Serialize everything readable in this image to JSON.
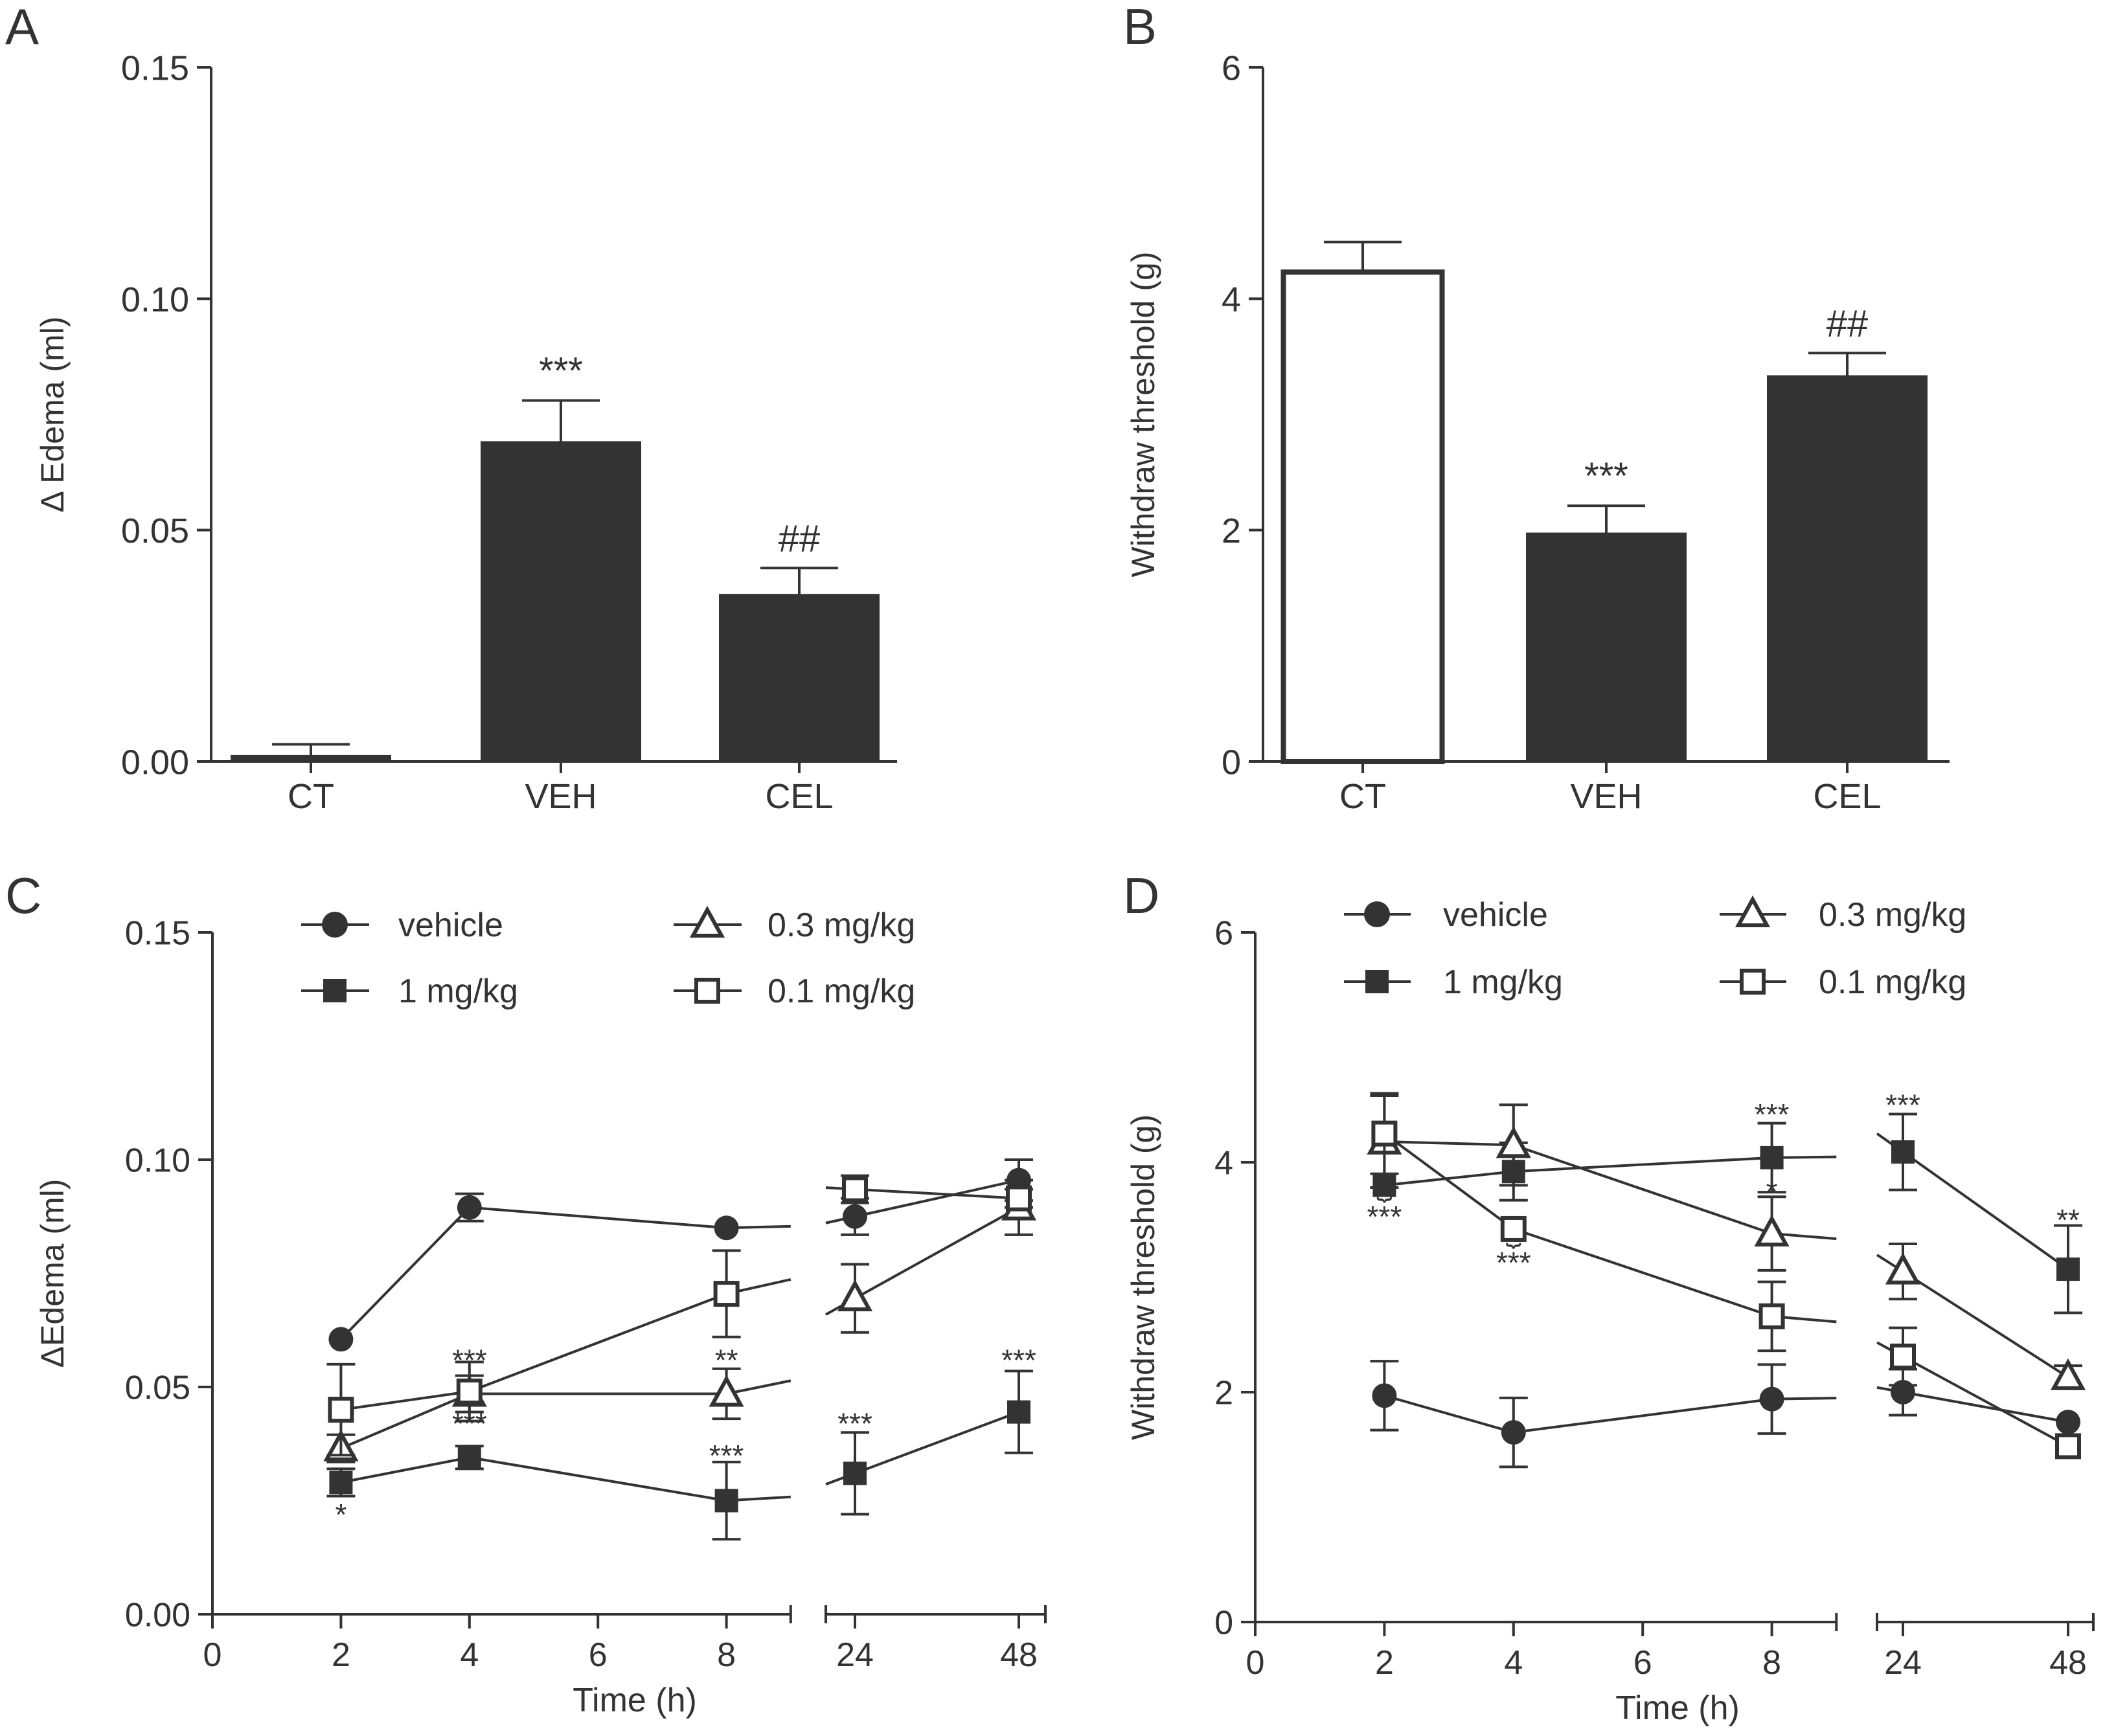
{
  "panels": {
    "A": {
      "letter": "A"
    },
    "B": {
      "letter": "B"
    },
    "C": {
      "letter": "C"
    },
    "D": {
      "letter": "D"
    }
  },
  "legend": {
    "vehicle": "vehicle",
    "one": "1 mg/kg",
    "point3": "0.3 mg/kg",
    "point1": "0.1 mg/kg"
  },
  "colors": {
    "ink": "#333333",
    "paper": "#ffffff"
  },
  "chart_data": [
    {
      "panel": "A",
      "type": "bar",
      "title": "",
      "xlabel": "",
      "ylabel": "Δ Edema (ml)",
      "ylim": [
        0,
        0.15
      ],
      "yticks": [
        0.0,
        0.05,
        0.1,
        0.15
      ],
      "ytick_labels": [
        "0.00",
        "0.05",
        "0.10",
        "0.15"
      ],
      "categories": [
        "CT",
        "VEH",
        "CEL"
      ],
      "values": [
        0.0012,
        0.069,
        0.036
      ],
      "errors": [
        0.0025,
        0.009,
        0.0058
      ],
      "fill": [
        "dark",
        "dark",
        "dark"
      ],
      "annotations": [
        "",
        "***",
        "##"
      ]
    },
    {
      "panel": "B",
      "type": "bar",
      "title": "",
      "xlabel": "",
      "ylabel": "Withdraw threshold (g)",
      "ylim": [
        0,
        6
      ],
      "yticks": [
        0,
        2,
        4,
        6
      ],
      "ytick_labels": [
        "0",
        "2",
        "4",
        "6"
      ],
      "categories": [
        "CT",
        "VEH",
        "CEL"
      ],
      "values": [
        4.23,
        1.97,
        3.33
      ],
      "errors": [
        0.26,
        0.24,
        0.2
      ],
      "fill": [
        "open",
        "dark",
        "dark"
      ],
      "annotations": [
        "",
        "***",
        "##"
      ]
    },
    {
      "panel": "C",
      "type": "line",
      "title": "",
      "xlabel": "Time (h)",
      "ylabel": "ΔEdema (ml)",
      "ylim": [
        0,
        0.15
      ],
      "yticks": [
        0.0,
        0.05,
        0.1,
        0.15
      ],
      "ytick_labels": [
        "0.00",
        "0.05",
        "0.10",
        "0.15"
      ],
      "x_segments": [
        {
          "range": [
            0,
            9
          ],
          "ticks": [
            0,
            2,
            4,
            6,
            8
          ],
          "tick_labels": [
            "0",
            "2",
            "4",
            "6",
            "8"
          ]
        },
        {
          "range": [
            24,
            48
          ],
          "ticks": [
            24,
            48
          ],
          "tick_labels": [
            "24",
            "48"
          ]
        }
      ],
      "x": [
        2,
        4,
        8,
        24,
        48
      ],
      "legend_position": "top",
      "series": [
        {
          "key": "vehicle",
          "name": "vehicle",
          "marker": "filled-circle",
          "values": [
            0.0605,
            0.0895,
            0.085,
            0.0875,
            0.0955
          ],
          "errors": [
            0,
            0.003,
            0,
            0.004,
            0.0045
          ]
        },
        {
          "key": "one",
          "name": "1 mg/kg",
          "marker": "filled-square",
          "values": [
            0.029,
            0.0345,
            0.025,
            0.031,
            0.0445
          ],
          "errors": [
            0.003,
            0.0025,
            0.0085,
            0.009,
            0.009
          ]
        },
        {
          "key": "point3",
          "name": "0.3 mg/kg",
          "marker": "open-triangle",
          "values": [
            0.0365,
            0.0485,
            0.0485,
            0.0695,
            0.0895
          ],
          "errors": [
            0.003,
            0.004,
            0.0055,
            0.0075,
            0.006
          ]
        },
        {
          "key": "point1",
          "name": "0.1 mg/kg",
          "marker": "open-square",
          "values": [
            0.045,
            0.049,
            0.0705,
            0.0935,
            0.0915
          ],
          "errors": [
            0.01,
            0.0065,
            0.0095,
            0.003,
            0.002
          ]
        }
      ],
      "annotations": [
        {
          "text": "*",
          "x": 2,
          "y": 0.0225
        },
        {
          "text": "***",
          "x": 4,
          "y": 0.0565
        },
        {
          "text": "***",
          "x": 4,
          "y": 0.0425
        },
        {
          "text": "**",
          "x": 8,
          "y": 0.0565
        },
        {
          "text": "***",
          "x": 8,
          "y": 0.0355
        },
        {
          "text": "***",
          "x": 24,
          "y": 0.0425
        },
        {
          "text": "***",
          "x": 48,
          "y": 0.0565
        }
      ]
    },
    {
      "panel": "D",
      "type": "line",
      "title": "",
      "xlabel": "Time (h)",
      "ylabel": "Withdraw threshold (g)",
      "ylim": [
        0,
        6
      ],
      "yticks": [
        0,
        2,
        4,
        6
      ],
      "ytick_labels": [
        "0",
        "2",
        "4",
        "6"
      ],
      "x_segments": [
        {
          "range": [
            0,
            9
          ],
          "ticks": [
            0,
            2,
            4,
            6,
            8
          ],
          "tick_labels": [
            "0",
            "2",
            "4",
            "6",
            "8"
          ]
        },
        {
          "range": [
            24,
            48
          ],
          "ticks": [
            24,
            48
          ],
          "tick_labels": [
            "24",
            "48"
          ]
        }
      ],
      "x": [
        2,
        4,
        8,
        24,
        48
      ],
      "legend_position": "top",
      "series": [
        {
          "key": "vehicle",
          "name": "vehicle",
          "marker": "filled-circle",
          "values": [
            1.97,
            1.65,
            1.94,
            2.0,
            1.74
          ],
          "errors": [
            0.3,
            0.3,
            0.3,
            0.2,
            0
          ]
        },
        {
          "key": "one",
          "name": "1 mg/kg",
          "marker": "filled-square",
          "values": [
            3.8,
            3.92,
            4.04,
            4.09,
            3.07
          ],
          "errors": [
            0,
            0.25,
            0.3,
            0.33,
            0.38
          ]
        },
        {
          "key": "point3",
          "name": "0.3 mg/kg",
          "marker": "open-triangle",
          "values": [
            4.18,
            4.15,
            3.38,
            3.05,
            2.13
          ],
          "errors": [
            0.4,
            0.35,
            0.32,
            0.24,
            0.1
          ]
        },
        {
          "key": "point1",
          "name": "0.1 mg/kg",
          "marker": "open-square",
          "values": [
            4.25,
            3.42,
            2.66,
            2.31,
            1.53
          ],
          "errors": [
            0.35,
            0,
            0.3,
            0.25,
            0
          ]
        }
      ],
      "annotations": [
        {
          "text": "***",
          "x": 2,
          "y": 3.55,
          "brace": true
        },
        {
          "text": "***",
          "x": 4,
          "y": 3.15,
          "brace": true
        },
        {
          "text": "***",
          "x": 8,
          "y": 4.44
        },
        {
          "text": "*",
          "x": 8,
          "y": 3.77
        },
        {
          "text": "***",
          "x": 24,
          "y": 4.52
        },
        {
          "text": "**",
          "x": 48,
          "y": 3.52
        }
      ]
    }
  ]
}
